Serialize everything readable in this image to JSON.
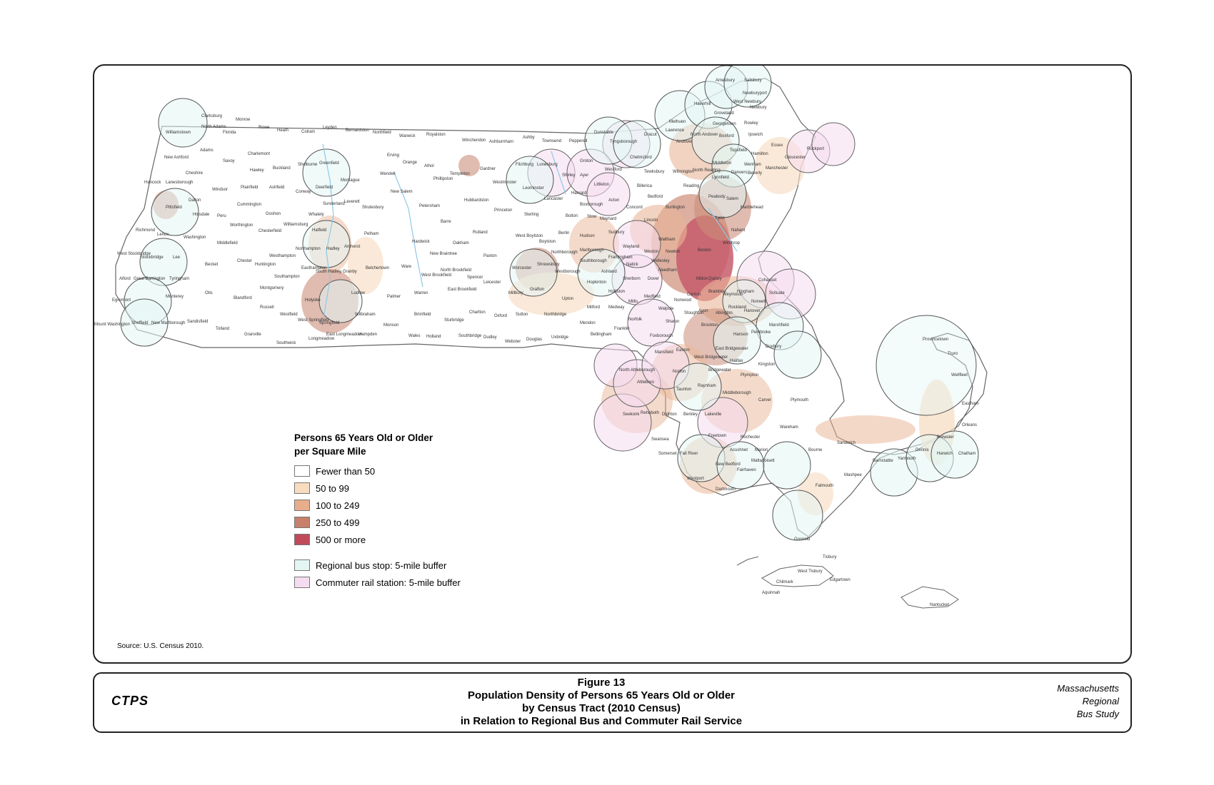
{
  "legend": {
    "title_line1": "Persons 65 Years Old or Older",
    "title_line2": "per Square Mile",
    "classes": [
      {
        "label": "Fewer than 50",
        "color": "#ffffff"
      },
      {
        "label": "50 to 99",
        "color": "#f7dcc0"
      },
      {
        "label": "100 to 249",
        "color": "#e8ae8c"
      },
      {
        "label": "250 to 499",
        "color": "#c7806a"
      },
      {
        "label": "500 or more",
        "color": "#bf4a5a"
      }
    ],
    "buffers": [
      {
        "label": "Regional bus stop: 5-mile buffer",
        "color": "#e3f6f4"
      },
      {
        "label": "Commuter rail station: 5-mile buffer",
        "color": "#f6dcf1"
      }
    ]
  },
  "source": "Source: U.S. Census 2010.",
  "footer": {
    "logo": "CTPS",
    "figure": "Figure 13",
    "title_line1": "Population Density of Persons 65 Years Old or Older",
    "title_line2": "by Census Tract (2010 Census)",
    "title_line3": "in Relation to Regional Bus and Commuter Rail Service",
    "study_line1": "Massachusetts",
    "study_line2": "Regional",
    "study_line3": "Bus Study"
  },
  "towns": {
    "clarksburg": "Clarksburg",
    "williamstown": "Williamstown",
    "north_adams": "North Adams",
    "florida": "Florida",
    "monroe": "Monroe",
    "rowe": "Rowe",
    "heath": "Heath",
    "colrain": "Colrain",
    "leyden": "Leyden",
    "bernardston": "Bernardston",
    "northfield": "Northfield",
    "warwick": "Warwick",
    "royalston": "Royalston",
    "winchendon": "Winchendon",
    "ashburnham": "Ashburnham",
    "ashby": "Ashby",
    "townsend": "Townsend",
    "pepperell": "Pepperell",
    "dunstable": "Dunstable",
    "tyngsborough": "Tyngsborough",
    "dracut": "Dracut",
    "methuen": "Methuen",
    "lawrence": "Lawrence",
    "andover": "Andover",
    "north_andover": "North Andover",
    "haverhill": "Haverhill",
    "amesbury": "Amesbury",
    "salisbury": "Salisbury",
    "newburyport": "Newburyport",
    "west_newbury": "West Newbury",
    "newbury": "Newbury",
    "groveland": "Groveland",
    "georgetown": "Georgetown",
    "rowley": "Rowley",
    "boxford": "Boxford",
    "ipswich": "Ipswich",
    "essex": "Essex",
    "rockport": "Rockport",
    "gloucester": "Gloucester",
    "hamilton": "Hamilton",
    "wenham": "Wenham",
    "topsfield": "Topsfield",
    "middleton": "Middleton",
    "danvers": "Danvers",
    "beverly": "Beverly",
    "manchester": "Manchester",
    "lynnfield": "Lynnfield",
    "north_reading": "North Reading",
    "wilmington": "Wilmington",
    "chelmsford": "Chelmsford",
    "westford": "Westford",
    "groton": "Groton",
    "shirley": "Shirley",
    "ayer": "Ayer",
    "lunenburg": "Lunenburg",
    "fitchburg": "Fitchburg",
    "leominster": "Leominster",
    "gardner": "Gardner",
    "westminster": "Westminster",
    "templeton": "Templeton",
    "athol": "Athol",
    "orange": "Orange",
    "phillipston": "Phillipston",
    "erving": "Erving",
    "wendell": "Wendell",
    "new_salem": "New Salem",
    "petersham": "Petersham",
    "hubbardston": "Hubbardston",
    "princeton": "Princeton",
    "sterling": "Sterling",
    "lancaster": "Lancaster",
    "harvard": "Harvard",
    "boxborough": "Boxborough",
    "littleton": "Littleton",
    "acton": "Acton",
    "concord": "Concord",
    "bedford": "Bedford",
    "lincoln": "Lincoln",
    "maynard": "Maynard",
    "stow": "Stow",
    "bolton": "Bolton",
    "berlin": "Berlin",
    "hudson": "Hudson",
    "marlborough": "Marlborough",
    "northborough": "Northborough",
    "west_boylston": "West Boylston",
    "boylston": "Boylston",
    "shrewsbury": "Shrewsbury",
    "worcester": "Worcester",
    "westborough": "Westborough",
    "southborough": "Southborough",
    "framingham": "Framingham",
    "natick": "Natick",
    "wayland": "Wayland",
    "weston": "Weston",
    "wellesley": "Wellesley",
    "needham": "Needham",
    "dover": "Dover",
    "sherborn": "Sherborn",
    "ashland": "Ashland",
    "hopkinton": "Hopkinton",
    "holliston": "Holliston",
    "medway": "Medway",
    "millis": "Millis",
    "medfield": "Medfield",
    "walpole": "Walpole",
    "norwood": "Norwood",
    "canton": "Canton",
    "milton": "Milton",
    "quincy": "Quincy",
    "braintree": "Braintree",
    "weymouth": "Weymouth",
    "hingham": "Hingham",
    "cohasset": "Cohasset",
    "scituate": "Scituate",
    "norwell": "Norwell",
    "hanover": "Hanover",
    "rockland": "Rockland",
    "abington": "Abington",
    "brockton": "Brockton",
    "stoughton": "Stoughton",
    "avon": "Avon",
    "sharon": "Sharon",
    "foxborough": "Foxborough",
    "mansfield": "Mansfield",
    "norfolk": "Norfolk",
    "franklin": "Franklin",
    "bellingham": "Bellingham",
    "mendon": "Mendon",
    "milford": "Milford",
    "upton": "Upton",
    "grafton": "Grafton",
    "millbury": "Millbury",
    "sutton": "Sutton",
    "northbridge": "Northbridge",
    "uxbridge": "Uxbridge",
    "douglas": "Douglas",
    "webster": "Webster",
    "dudley": "Dudley",
    "oxford": "Oxford",
    "charlton": "Charlton",
    "sturbridge": "Sturbridge",
    "southbridge": "Southbridge",
    "wales": "Wales",
    "holland": "Holland",
    "brimfield": "Brimfield",
    "monson": "Monson",
    "hampden": "Hampden",
    "wilbraham": "Wilbraham",
    "ludlow": "Ludlow",
    "palmer": "Palmer",
    "warren": "Warren",
    "west_brookfield": "West Brookfield",
    "east_brookfield": "East Brookfield",
    "north_brookfield": "North Brookfield",
    "spencer": "Spencer",
    "leicester": "Leicester",
    "paxton": "Paxton",
    "rutland": "Rutland",
    "oakham": "Oakham",
    "new_braintree": "New Braintree",
    "hardwick": "Hardwick",
    "barre": "Barre",
    "ware": "Ware",
    "belchertown": "Belchertown",
    "pelham": "Pelham",
    "amherst": "Amherst",
    "hadley": "Hadley",
    "granby": "Granby",
    "south_hadley": "South Hadley",
    "easthampton": "Easthampton",
    "northampton": "Northampton",
    "hatfield": "Hatfield",
    "whately": "Whately",
    "williamsburg": "Williamsburg",
    "westhampton": "Westhampton",
    "southampton": "Southampton",
    "montgomery": "Montgomery",
    "huntington": "Huntington",
    "chester": "Chester",
    "middlefield": "Middlefield",
    "worthington": "Worthington",
    "chesterfield": "Chesterfield",
    "goshen": "Goshen",
    "cummington": "Cummington",
    "plainfield": "Plainfield",
    "ashfield": "Ashfield",
    "conway": "Conway",
    "deerfield": "Deerfield",
    "shelburne": "Shelburne",
    "greenfield": "Greenfield",
    "montague": "Montague",
    "sunderland": "Sunderland",
    "leverett": "Leverett",
    "shutesbury": "Shutesbury",
    "buckland": "Buckland",
    "charlemont": "Charlemont",
    "hawley": "Hawley",
    "savoy": "Savoy",
    "windsor": "Windsor",
    "peru": "Peru",
    "dalton": "Dalton",
    "hinsdale": "Hinsdale",
    "pittsfield": "Pittsfield",
    "lanesborough": "Lanesborough",
    "hancock": "Hancock",
    "cheshire": "Cheshire",
    "adams": "Adams",
    "new_ashford": "New Ashford",
    "richmond": "Richmond",
    "lenox": "Lenox",
    "washington": "Washington",
    "becket": "Becket",
    "lee": "Lee",
    "stockbridge": "Stockbridge",
    "west_stockbridge": "West Stockbridge",
    "great_barrington": "Great Barrington",
    "tyringham": "Tyringham",
    "otis": "Otis",
    "blandford": "Blandford",
    "russell": "Russell",
    "westfield": "Westfield",
    "west_springfield": "West Springfield",
    "springfield": "Springfield",
    "longmeadow": "Longmeadow",
    "east_longmeadow": "East Longmeadow",
    "southwick": "Southwick",
    "granville": "Granville",
    "tolland": "Tolland",
    "sandisfield": "Sandisfield",
    "new_marlborough": "New Marlborough",
    "sheffield": "Sheffield",
    "egremont": "Egremont",
    "alford": "Alford",
    "monterey": "Monterey",
    "mount_washington": "Mount Washington",
    "holyoke": "Holyoke",
    "attleboro": "Attleboro",
    "north_attleborough": "North Attleborough",
    "norton": "Norton",
    "taunton": "Taunton",
    "raynham": "Raynham",
    "easton": "Easton",
    "west_bridgewater": "West Bridgewater",
    "east_bridgewater": "East Bridgewater",
    "bridgewater": "Bridgewater",
    "halifax": "Halifax",
    "plympton": "Plympton",
    "kingston": "Kingston",
    "duxbury": "Duxbury",
    "marshfield": "Marshfield",
    "pembroke": "Pembroke",
    "hanson": "Hanson",
    "middleborough": "Middleborough",
    "lakeville": "Lakeville",
    "carver": "Carver",
    "plymouth": "Plymouth",
    "rehoboth": "Rehoboth",
    "seekonk": "Seekonk",
    "dighton": "Dighton",
    "berkley": "Berkley",
    "swansea": "Swansea",
    "somerset": "Somerset",
    "fall_river": "Fall River",
    "westport": "Westport",
    "dartmouth": "Dartmouth",
    "new_bedford": "New Bedford",
    "fairhaven": "Fairhaven",
    "acushnet": "Acushnet",
    "freetown": "Freetown",
    "rochester": "Rochester",
    "marion": "Marion",
    "mattapoisett": "Mattapoisett",
    "wareham": "Wareham",
    "bourne": "Bourne",
    "sandwich": "Sandwich",
    "falmouth": "Falmouth",
    "mashpee": "Mashpee",
    "barnstable": "Barnstable",
    "yarmouth": "Yarmouth",
    "dennis": "Dennis",
    "brewster": "Brewster",
    "harwich": "Harwich",
    "chatham": "Chatham",
    "orleans": "Orleans",
    "eastham": "Eastham",
    "wellfleet": "Wellfleet",
    "truro": "Truro",
    "provincetown": "Provincetown",
    "gosnold": "Gosnold",
    "tisbury": "Tisbury",
    "west_tisbury": "West Tisbury",
    "edgartown": "Edgartown",
    "chilmark": "Chilmark",
    "aquinnah": "Aquinnah",
    "nantucket": "Nantucket",
    "lincoln_e": "Lincoln",
    "sudbury": "Sudbury",
    "burlington": "Burlington",
    "tewksbury": "Tewksbury",
    "billerica": "Billerica",
    "reading": "Reading",
    "lynn": "Lynn",
    "nahant": "Nahant",
    "salem": "Salem",
    "marblehead": "Marblehead",
    "peabody": "Peabody",
    "waltham": "Waltham",
    "newton": "Newton",
    "boston": "Boston",
    "winthrop": "Winthrop"
  }
}
